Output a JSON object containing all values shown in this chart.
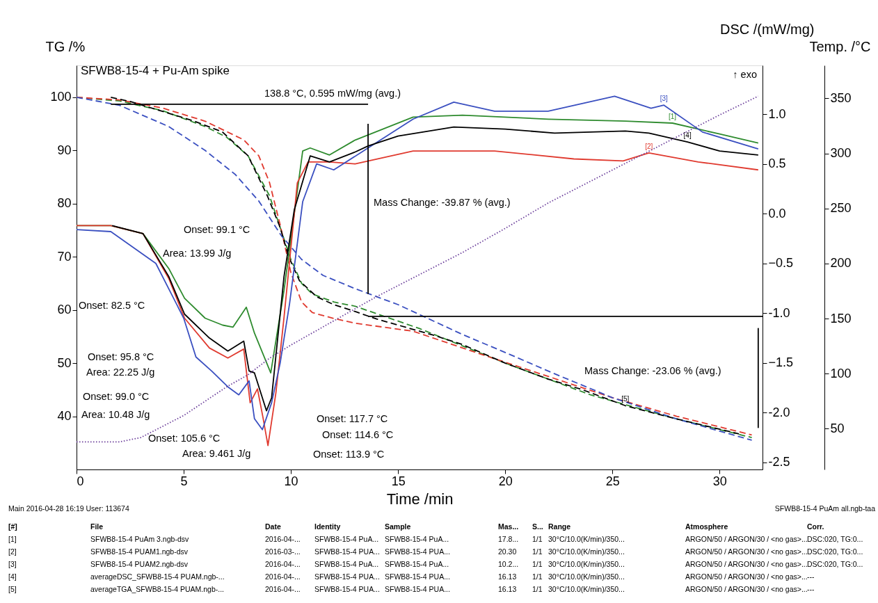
{
  "chart_data": {
    "type": "line",
    "title": "SFWB8-15-4 + Pu-Am spike",
    "xlabel": "Time /min",
    "ylabel": "TG /%",
    "y2label": "DSC /(mW/mg)",
    "y3label": "Temp. /°C",
    "xlim": [
      0,
      32
    ],
    "xticks": [
      0,
      5,
      10,
      15,
      20,
      25,
      30
    ],
    "ylim": [
      30,
      106
    ],
    "yticks": [
      40,
      50,
      60,
      70,
      80,
      90,
      100
    ],
    "y2lim": [
      -2.57,
      1.49
    ],
    "y2ticks": [
      {
        "value": -2.5,
        "label": "-2.5"
      },
      {
        "value": -2,
        "label": "-2.0"
      },
      -1.5,
      {
        "value": -1,
        "label": "-1.0"
      },
      -0.5,
      {
        "value": 0,
        "label": "0.0"
      },
      0.5,
      {
        "value": 1,
        "label": "1.0"
      }
    ],
    "y3lim": [
      13,
      380
    ],
    "y3ticks": [
      50,
      100,
      150,
      200,
      250,
      300,
      350
    ],
    "series": [
      {
        "color": "#2e8b2e",
        "line_style": "dashed",
        "x": [
          0,
          2,
          4,
          6,
          7,
          8,
          9,
          9.5,
          10,
          10.5,
          11,
          12,
          13,
          16,
          20,
          24,
          28,
          31.5
        ],
        "values": [
          100,
          99.3,
          97.5,
          94.5,
          92.5,
          89,
          81.5,
          75.5,
          69.5,
          65,
          63,
          61.5,
          60.7,
          56.5,
          50,
          44,
          39.5,
          36
        ]
      },
      {
        "color": "#e03a2f",
        "line_style": "dashed",
        "x": [
          0,
          2,
          4,
          6,
          7.8,
          8.5,
          9,
          9.5,
          10,
          10.5,
          11,
          12,
          13,
          15.7,
          19,
          22,
          25,
          28,
          31.5
        ],
        "values": [
          100,
          99.5,
          98,
          95.5,
          92,
          89,
          84,
          76,
          67,
          61.5,
          59.5,
          58.4,
          57.5,
          56,
          51.5,
          47.5,
          43.5,
          40,
          36.5
        ]
      },
      {
        "color": "#3a4fc0",
        "line_style": "dashed",
        "x": [
          0,
          2,
          4.3,
          6,
          7.4,
          8.5,
          9.55,
          10.5,
          11.5,
          13,
          15,
          18,
          20,
          22.3,
          25,
          28,
          31.5
        ],
        "values": [
          100,
          98.5,
          94.5,
          90,
          85.5,
          80.5,
          74,
          69.5,
          66.5,
          64,
          61,
          55.4,
          52,
          48,
          43.5,
          39.5,
          35.5
        ]
      },
      {
        "name": "[5]",
        "color": "#000000",
        "line_style": "dashed",
        "x": [
          1.6,
          2.5,
          4.3,
          5.5,
          6.8,
          8,
          8.9,
          9.5,
          9.9,
          10.4,
          11.2,
          12,
          13,
          14,
          16.7,
          18,
          20,
          22,
          23.6,
          25.6,
          28,
          30.9
        ],
        "values": [
          100,
          99.2,
          97,
          95.5,
          93.5,
          89,
          81.5,
          75.5,
          70,
          65.5,
          62.5,
          61,
          59.7,
          58.3,
          55.2,
          53.5,
          50,
          47,
          45,
          42,
          39.5,
          36.7
        ]
      },
      {
        "name": "[1]",
        "color": "#2e8b2e",
        "line_style": "solid",
        "axis": "y2",
        "x": [
          0,
          1.6,
          3.1,
          4.3,
          5.04,
          6,
          6.82,
          7.3,
          7.92,
          8.3,
          9.06,
          9.68,
          10.55,
          10.9,
          11.8,
          13,
          15.7,
          18,
          22,
          25.6,
          27.8,
          30,
          31.8
        ],
        "values": [
          -0.12,
          -0.12,
          -0.2,
          -0.55,
          -0.85,
          -1.05,
          -1.12,
          -1.14,
          -0.94,
          -1.2,
          -1.6,
          -0.77,
          0.63,
          0.66,
          0.59,
          0.74,
          0.97,
          0.99,
          0.95,
          0.93,
          0.91,
          0.8,
          0.71
        ]
      },
      {
        "name": "[2]",
        "color": "#e03a2f",
        "line_style": "solid",
        "axis": "y2",
        "x": [
          0,
          1.6,
          3.1,
          4.3,
          5.04,
          6.2,
          7.06,
          7.8,
          8.1,
          8.44,
          8.7,
          8.93,
          9.3,
          9.68,
          10.3,
          10.8,
          11.8,
          13,
          15.7,
          19.5,
          23.2,
          25.5,
          26.7,
          29,
          31.8
        ],
        "values": [
          -0.12,
          -0.12,
          -0.2,
          -0.65,
          -1.05,
          -1.35,
          -1.45,
          -1.36,
          -1.9,
          -1.76,
          -2.05,
          -2.33,
          -1.8,
          -1.04,
          0.31,
          0.52,
          0.52,
          0.5,
          0.63,
          0.63,
          0.55,
          0.53,
          0.61,
          0.52,
          0.44
        ]
      },
      {
        "name": "[3]",
        "color": "#3a4fc0",
        "line_style": "solid",
        "axis": "y2",
        "x": [
          0,
          1.6,
          3.7,
          5.0,
          5.57,
          6.3,
          7.06,
          7.57,
          8.05,
          8.3,
          8.67,
          9.1,
          9.5,
          9.94,
          10.55,
          11.2,
          12,
          13.6,
          15.7,
          17.6,
          19.5,
          22,
          25.1,
          26.8,
          27.4,
          29.2,
          31.8
        ],
        "values": [
          -0.16,
          -0.18,
          -0.5,
          -1.05,
          -1.44,
          -1.58,
          -1.74,
          -1.82,
          -1.68,
          -2.06,
          -2.17,
          -1.9,
          -1.5,
          -0.9,
          0.12,
          0.5,
          0.44,
          0.66,
          0.95,
          1.12,
          1.03,
          1.03,
          1.18,
          1.06,
          1.09,
          0.82,
          0.65
        ]
      },
      {
        "name": "[4]",
        "color": "#000000",
        "line_style": "solid",
        "axis": "y2",
        "x": [
          1.66,
          3.1,
          4.3,
          5.04,
          6.2,
          7.06,
          7.8,
          8.05,
          8.3,
          8.86,
          9.1,
          9.68,
          10.16,
          10.9,
          11.8,
          13,
          13.6,
          15,
          17.6,
          20,
          22.3,
          25.6,
          26.7,
          28.5,
          30,
          31.8
        ],
        "values": [
          -0.12,
          -0.2,
          -0.63,
          -1.01,
          -1.25,
          -1.38,
          -1.28,
          -1.58,
          -1.6,
          -1.98,
          -1.85,
          -0.63,
          0.04,
          0.58,
          0.52,
          0.62,
          0.68,
          0.78,
          0.87,
          0.85,
          0.81,
          0.83,
          0.81,
          0.72,
          0.63,
          0.59
        ]
      },
      {
        "color": "#6a3d9a",
        "line_style": "dotted",
        "axis": "y3",
        "x": [
          0,
          1,
          2,
          3,
          4,
          5,
          6,
          7,
          8,
          9,
          10,
          12,
          14,
          16,
          18,
          20,
          22,
          24,
          26,
          28,
          30,
          31.8
        ],
        "values": [
          38,
          38,
          38,
          42,
          52,
          62,
          75,
          88,
          99,
          114,
          126,
          148,
          170,
          190,
          210,
          232,
          255,
          275,
          295,
          315,
          335,
          352
        ]
      },
      {
        "color": "#000000",
        "line_style": "solid",
        "x": [
          1.6,
          13.6
        ],
        "values": [
          98.7,
          98.7
        ]
      },
      {
        "color": "#000000",
        "line_style": "solid",
        "x": [
          13.6,
          13.6
        ],
        "values": [
          95,
          63
        ]
      },
      {
        "color": "#000000",
        "line_style": "solid",
        "x": [
          13.6,
          32
        ],
        "values": [
          58.8,
          58.8
        ]
      },
      {
        "color": "#000000",
        "line_style": "solid",
        "x": [
          31.8,
          31.8
        ],
        "values": [
          56.6,
          37.8
        ]
      }
    ],
    "annotations": [
      "138.8 °C, 0.595 mW/mg    (avg.)",
      "Mass Change: -39.87 %    (avg.)",
      "Mass Change: -23.06 %    (avg.)",
      "Onset: 99.1 °C",
      "Area: 13.99 J/g",
      "Onset: 82.5 °C",
      "Onset: 95.8 °C",
      "Area: 22.25 J/g",
      "Onset: 99.0 °C",
      "Area: 10.48 J/g",
      "Onset: 105.6 °C",
      "Area: 9.461 J/g",
      "Onset: 117.7 °C",
      "Onset: 114.6 °C",
      "Onset: 113.9 °C",
      "↑ exo",
      "Main   2016-04-28 16:19   User: 113674",
      "SFWB8-15-4 PuAm all.ngb-taa",
      "[#]",
      "File",
      "Date",
      "Identity",
      "Sample",
      "Mas...",
      "S...",
      "Range",
      "Atmosphere",
      "Corr.",
      "[1]",
      "SFWB8-15-4 PuAm 3.ngb-dsv",
      "2016-04-...",
      "SFWB8-15-4 PuA...",
      "SFWB8-15-4 PuA...",
      "17.8...",
      "1/1",
      "30°C/10.0(K/min)/350...",
      "ARGON/50 / ARGON/30 / <no gas>...",
      "DSC:020, TG:0...",
      "[2]",
      "SFWB8-15-4 PUAM1.ngb-dsv",
      "2016-03-...",
      "SFWB8-15-4 PUA...",
      "SFWB8-15-4 PUA...",
      "20.30",
      "1/1",
      "30°C/10.0(K/min)/350...",
      "ARGON/50 / ARGON/30 / <no gas>...",
      "DSC:020, TG:0...",
      "[3]",
      "SFWB8-15-4 PUAM2.ngb-dsv",
      "2016-04-...",
      "SFWB8-15-4 PuA...",
      "SFWB8-15-4 PuA...",
      "10.2...",
      "1/1",
      "30°C/10.0(K/min)/350...",
      "ARGON/50 / ARGON/30 / <no gas>...",
      "DSC:020, TG:0...",
      "[4]",
      "averageDSC_SFWB8-15-4 PUAM.ngb-...",
      "2016-04-...",
      "SFWB8-15-4 PUA...",
      "SFWB8-15-4 PUA...",
      "16.13",
      "1/1",
      "30°C/10.0(K/min)/350...",
      "ARGON/50 / ARGON/30 / <no gas>...",
      "---",
      "[5]",
      "averageTGA_SFWB8-15-4 PUAM.ngb-...",
      "2016-04-...",
      "SFWB8-15-4 PUA...",
      "SFWB8-15-4 PUA...",
      "16.13",
      "1/1",
      "30°C/10.0(K/min)/350...",
      "ARGON/50 / ARGON/30 / <no gas>...",
      "---"
    ]
  }
}
